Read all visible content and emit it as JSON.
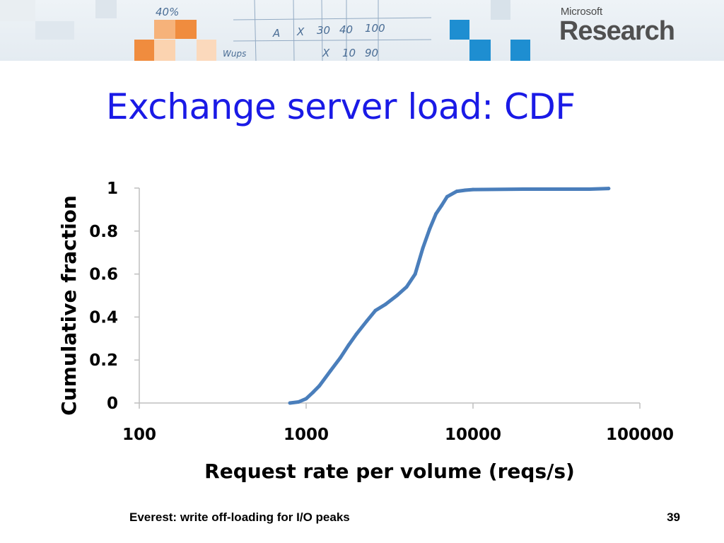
{
  "slide": {
    "title": "Exchange server load: CDF",
    "footer": "Everest: write off-loading for I/O peaks",
    "page_number": "39"
  },
  "logo": {
    "company": "Microsoft",
    "division": "Research"
  },
  "banner": {
    "scribble_text": [
      "A",
      "X",
      "30",
      "40",
      "100",
      "X",
      "10",
      "90",
      "40%",
      "Wups"
    ]
  },
  "colors": {
    "title": "#1a1ae6",
    "series": "#4a7ebb",
    "axis": "#bfbfbf",
    "orange_block": "#f08c3e",
    "blue_block": "#1e8ed1"
  },
  "chart_data": {
    "type": "line",
    "xscale": "log",
    "xlim": [
      100,
      100000
    ],
    "ylim": [
      0,
      1
    ],
    "xticks": [
      "100",
      "1000",
      "10000",
      "100000"
    ],
    "yticks": [
      "0",
      "0.2",
      "0.4",
      "0.6",
      "0.8",
      "1"
    ],
    "xlabel": "Request rate per volume (reqs/s)",
    "ylabel": "Cumulative fraction",
    "grid": false,
    "legend": "none",
    "series": [
      {
        "x": [
          800,
          900,
          1000,
          1100,
          1200,
          1400,
          1600,
          1800,
          2000,
          2300,
          2600,
          3000,
          3500,
          4000,
          4500,
          5000,
          5500,
          6000,
          6500,
          7000,
          8000,
          9000,
          10000,
          20000,
          50000,
          65000
        ],
        "y": [
          0.0,
          0.005,
          0.02,
          0.05,
          0.08,
          0.15,
          0.21,
          0.27,
          0.32,
          0.38,
          0.43,
          0.46,
          0.5,
          0.54,
          0.6,
          0.72,
          0.81,
          0.88,
          0.92,
          0.96,
          0.985,
          0.99,
          0.993,
          0.995,
          0.995,
          0.998
        ]
      }
    ]
  }
}
